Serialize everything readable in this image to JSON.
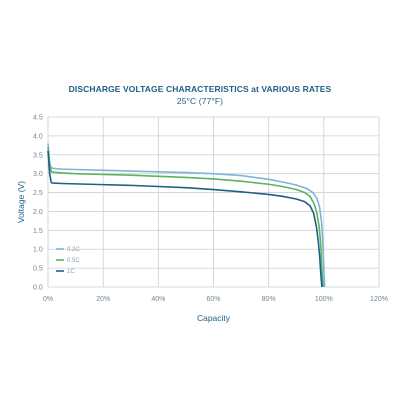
{
  "chart_data": {
    "type": "line",
    "title": "DISCHARGE VOLTAGE CHARACTERISTICS at VARIOUS RATES",
    "subtitle": "25°C (77°F)",
    "xlabel": "Capacity",
    "ylabel": "Voltage (V)",
    "xlim": [
      0,
      120
    ],
    "ylim": [
      0,
      4.5
    ],
    "xticks": [
      "0%",
      "20%",
      "40%",
      "60%",
      "80%",
      "100%",
      "120%"
    ],
    "yticks": [
      "0.0",
      "0.5",
      "1.0",
      "1.5",
      "2.0",
      "2.5",
      "3.0",
      "3.5",
      "4.0",
      "4.5"
    ],
    "grid": true,
    "legend_position": "bottom-left",
    "series": [
      {
        "name": "0.2C",
        "color": "#7fb3d9",
        "x": [
          0,
          0.6,
          1.2,
          2,
          5,
          10,
          20,
          30,
          40,
          50,
          60,
          70,
          80,
          85,
          90,
          94,
          96,
          97.5,
          98.5,
          99.2,
          99.6,
          100,
          100.3
        ],
        "y": [
          3.8,
          3.3,
          3.15,
          3.14,
          3.12,
          3.11,
          3.09,
          3.07,
          3.05,
          3.03,
          3.0,
          2.95,
          2.85,
          2.78,
          2.7,
          2.6,
          2.5,
          2.35,
          2.1,
          1.7,
          1.2,
          0.5,
          0.0
        ]
      },
      {
        "name": "0.5C",
        "color": "#5bb35b",
        "x": [
          0,
          0.6,
          1.2,
          2,
          5,
          10,
          20,
          30,
          40,
          50,
          60,
          70,
          80,
          85,
          90,
          93,
          95,
          96.5,
          97.5,
          98.3,
          98.9,
          99.3,
          99.7
        ],
        "y": [
          3.7,
          3.2,
          3.05,
          3.04,
          3.02,
          3.0,
          2.98,
          2.96,
          2.93,
          2.9,
          2.86,
          2.8,
          2.72,
          2.66,
          2.58,
          2.5,
          2.4,
          2.2,
          1.95,
          1.6,
          1.1,
          0.5,
          0.0
        ]
      },
      {
        "name": "1C",
        "color": "#1f5f86",
        "x": [
          0,
          0.6,
          1.2,
          2,
          5,
          10,
          20,
          30,
          40,
          50,
          60,
          70,
          80,
          85,
          90,
          93,
          95,
          96.3,
          97.3,
          98.0,
          98.5,
          98.9,
          99.3
        ],
        "y": [
          3.6,
          3.0,
          2.76,
          2.75,
          2.74,
          2.73,
          2.71,
          2.69,
          2.66,
          2.63,
          2.58,
          2.52,
          2.45,
          2.4,
          2.33,
          2.26,
          2.15,
          1.95,
          1.6,
          1.2,
          0.8,
          0.35,
          0.0
        ]
      }
    ]
  }
}
